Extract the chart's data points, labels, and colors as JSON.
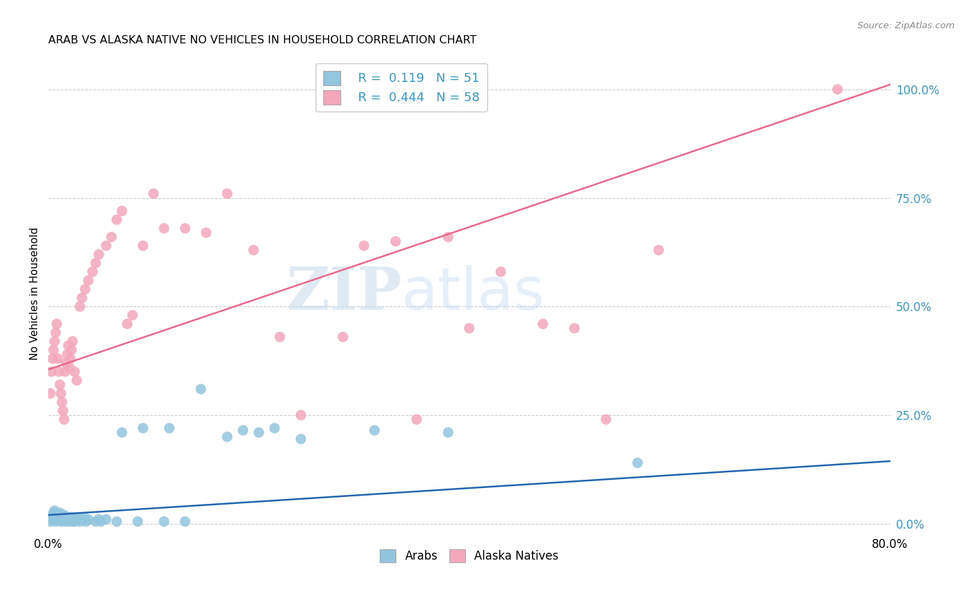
{
  "title": "ARAB VS ALASKA NATIVE NO VEHICLES IN HOUSEHOLD CORRELATION CHART",
  "source": "Source: ZipAtlas.com",
  "ylabel": "No Vehicles in Household",
  "xlim": [
    0.0,
    0.8
  ],
  "ylim": [
    -0.02,
    1.08
  ],
  "ytick_values": [
    0.0,
    0.25,
    0.5,
    0.75,
    1.0
  ],
  "ytick_labels": [
    "0.0%",
    "25.0%",
    "50.0%",
    "75.0%",
    "100.0%"
  ],
  "xtick_values": [
    0.0,
    0.8
  ],
  "xtick_labels": [
    "0.0%",
    "80.0%"
  ],
  "legend_arab_r": "0.119",
  "legend_arab_n": "51",
  "legend_alaska_r": "0.444",
  "legend_alaska_n": "58",
  "arab_color": "#92c5de",
  "alaska_color": "#f4a7bb",
  "arab_line_color": "#2166ac",
  "alaska_line_color": "#e8688a",
  "watermark_zip": "ZIP",
  "watermark_atlas": "atlas",
  "arab_scatter_x": [
    0.002,
    0.003,
    0.004,
    0.004,
    0.005,
    0.006,
    0.007,
    0.008,
    0.009,
    0.01,
    0.011,
    0.012,
    0.013,
    0.014,
    0.015,
    0.016,
    0.017,
    0.018,
    0.02,
    0.021,
    0.022,
    0.023,
    0.024,
    0.025,
    0.026,
    0.027,
    0.03,
    0.032,
    0.034,
    0.036,
    0.038,
    0.045,
    0.048,
    0.05,
    0.055,
    0.065,
    0.07,
    0.085,
    0.09,
    0.11,
    0.115,
    0.13,
    0.145,
    0.17,
    0.185,
    0.2,
    0.215,
    0.24,
    0.31,
    0.38,
    0.56
  ],
  "arab_scatter_y": [
    0.005,
    0.01,
    0.015,
    0.02,
    0.025,
    0.03,
    0.005,
    0.01,
    0.015,
    0.02,
    0.025,
    0.005,
    0.01,
    0.015,
    0.02,
    0.005,
    0.01,
    0.015,
    0.005,
    0.01,
    0.015,
    0.005,
    0.01,
    0.005,
    0.01,
    0.015,
    0.005,
    0.01,
    0.015,
    0.005,
    0.01,
    0.005,
    0.01,
    0.005,
    0.01,
    0.005,
    0.21,
    0.005,
    0.22,
    0.005,
    0.22,
    0.005,
    0.31,
    0.2,
    0.215,
    0.21,
    0.22,
    0.195,
    0.215,
    0.21,
    0.14
  ],
  "alaska_scatter_x": [
    0.002,
    0.003,
    0.004,
    0.005,
    0.006,
    0.007,
    0.008,
    0.009,
    0.01,
    0.011,
    0.012,
    0.013,
    0.014,
    0.015,
    0.016,
    0.017,
    0.018,
    0.019,
    0.02,
    0.021,
    0.022,
    0.023,
    0.025,
    0.027,
    0.03,
    0.032,
    0.035,
    0.038,
    0.042,
    0.045,
    0.048,
    0.055,
    0.06,
    0.065,
    0.07,
    0.075,
    0.08,
    0.09,
    0.1,
    0.11,
    0.13,
    0.15,
    0.17,
    0.195,
    0.22,
    0.24,
    0.28,
    0.3,
    0.33,
    0.35,
    0.38,
    0.4,
    0.43,
    0.47,
    0.5,
    0.53,
    0.58,
    0.75
  ],
  "alaska_scatter_y": [
    0.3,
    0.35,
    0.38,
    0.4,
    0.42,
    0.44,
    0.46,
    0.38,
    0.35,
    0.32,
    0.3,
    0.28,
    0.26,
    0.24,
    0.35,
    0.37,
    0.39,
    0.41,
    0.36,
    0.38,
    0.4,
    0.42,
    0.35,
    0.33,
    0.5,
    0.52,
    0.54,
    0.56,
    0.58,
    0.6,
    0.62,
    0.64,
    0.66,
    0.7,
    0.72,
    0.46,
    0.48,
    0.64,
    0.76,
    0.68,
    0.68,
    0.67,
    0.76,
    0.63,
    0.43,
    0.25,
    0.43,
    0.64,
    0.65,
    0.24,
    0.66,
    0.45,
    0.58,
    0.46,
    0.45,
    0.24,
    0.63,
    1.0
  ],
  "arab_line_intercept": 0.02,
  "arab_line_slope": 0.155,
  "alaska_line_intercept": 0.355,
  "alaska_line_slope": 0.82
}
